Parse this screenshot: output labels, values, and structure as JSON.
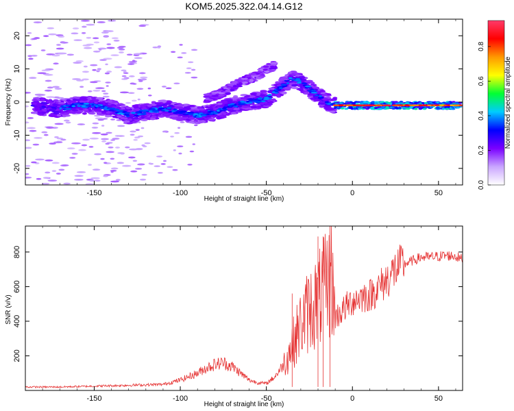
{
  "chart_data": [
    {
      "type": "heatmap",
      "title": "KOM5.2025.322.04.14.G12",
      "xlabel": "Height of straight line (km)",
      "ylabel": "Frequency (Hz)",
      "xlim": [
        -190,
        64
      ],
      "ylim": [
        -25,
        25
      ],
      "xticks": [
        -150,
        -100,
        -50,
        0,
        50
      ],
      "yticks": [
        20,
        10,
        0,
        -10,
        -20
      ],
      "colorbar": {
        "label": "Normalized spectral amplitude",
        "range": [
          0.0,
          0.95
        ],
        "ticks": [
          0.0,
          0.2,
          0.4,
          0.6,
          0.8
        ],
        "colors": [
          "#ffffff",
          "#c9a6ff",
          "#7a00ff",
          "#0000ff",
          "#00ccff",
          "#00ff33",
          "#ffff00",
          "#ff9900",
          "#ff0000",
          "#ff3b6a"
        ]
      },
      "ridge": {
        "x": [
          -185,
          -170,
          -160,
          -150,
          -140,
          -130,
          -120,
          -110,
          -100,
          -90,
          -80,
          -70,
          -60,
          -50,
          -45,
          -40,
          -35,
          -30,
          -25,
          -20,
          -15,
          -10,
          -5,
          0,
          10,
          20,
          30,
          40,
          50,
          63
        ],
        "y": [
          -1,
          -2,
          -1,
          -1,
          -2,
          -4,
          -3,
          -2,
          -3,
          -4,
          -3,
          -1,
          0,
          1,
          3,
          5,
          7,
          6,
          4,
          2,
          0,
          -1,
          -1,
          -1,
          -0.5,
          -1,
          -1,
          -1,
          -1,
          -1
        ]
      },
      "upper_branch": {
        "x": [
          -85,
          -75,
          -65,
          -55,
          -50,
          -45
        ],
        "y": [
          1,
          3,
          6,
          8,
          10,
          11
        ]
      },
      "strong_band": {
        "x_start": -10,
        "x_end": 63,
        "y": -1
      }
    },
    {
      "type": "line",
      "xlabel": "Height of straight line (km)",
      "ylabel": "SNR (v/v)",
      "xlim": [
        -190,
        64
      ],
      "ylim": [
        0,
        950
      ],
      "xticks": [
        -150,
        -100,
        -50,
        0,
        50
      ],
      "yticks": [
        200,
        400,
        600,
        800
      ],
      "color": "#e53030",
      "envelope": {
        "x": [
          -190,
          -170,
          -150,
          -130,
          -110,
          -100,
          -95,
          -90,
          -85,
          -80,
          -75,
          -70,
          -65,
          -60,
          -55,
          -50,
          -45,
          -40,
          -35,
          -30,
          -25,
          -20,
          -15,
          -12,
          -10,
          -5,
          0,
          5,
          10,
          15,
          20,
          25,
          30,
          35,
          40,
          45,
          50,
          55,
          60,
          63
        ],
        "y": [
          20,
          20,
          25,
          30,
          35,
          60,
          80,
          100,
          130,
          150,
          160,
          140,
          100,
          60,
          45,
          40,
          80,
          150,
          260,
          380,
          470,
          520,
          600,
          650,
          420,
          470,
          520,
          540,
          550,
          590,
          640,
          700,
          730,
          750,
          770,
          770,
          775,
          780,
          775,
          760
        ]
      },
      "spikes": [
        {
          "x": -20,
          "y": 890
        },
        {
          "x": -17,
          "y": 890
        },
        {
          "x": -13,
          "y": 950
        },
        {
          "x": -35,
          "y": 560
        }
      ]
    }
  ]
}
